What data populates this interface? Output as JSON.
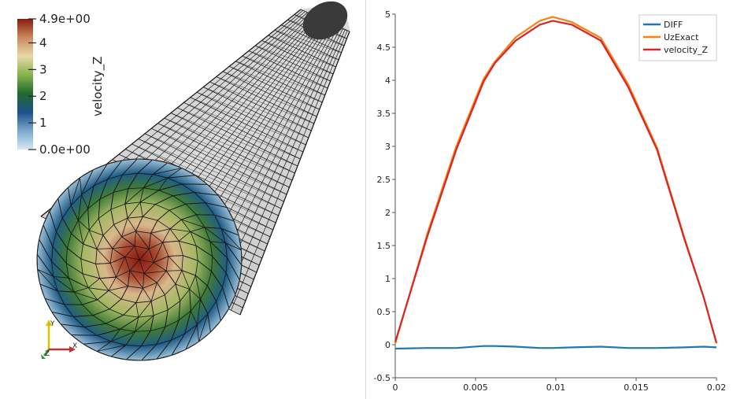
{
  "left_view": {
    "colorbar": {
      "title": "velocity_Z",
      "ticks": [
        {
          "value": 4.9,
          "label": "4.9e+00"
        },
        {
          "value": 4,
          "label": "4"
        },
        {
          "value": 3,
          "label": "3"
        },
        {
          "value": 2,
          "label": "2"
        },
        {
          "value": 1,
          "label": "1"
        },
        {
          "value": 0,
          "label": "0.0e+00"
        }
      ],
      "min": 0,
      "max": 4.9,
      "colors": [
        "#d6e8f4",
        "#7aa9cc",
        "#1e4f8c",
        "#1f6a2d",
        "#86b34a",
        "#e8d9a8",
        "#c98a5c",
        "#8a1a0e"
      ]
    },
    "axes_labels": {
      "x": "X",
      "y": "Y",
      "z": "Z"
    }
  },
  "chart_data": {
    "type": "line",
    "xlim": [
      0,
      0.02
    ],
    "ylim": [
      -0.5,
      5
    ],
    "x_ticks": [
      {
        "value": 0,
        "label": "0"
      },
      {
        "value": 0.005,
        "label": "0.005"
      },
      {
        "value": 0.01,
        "label": "0.01"
      },
      {
        "value": 0.015,
        "label": "0.015"
      },
      {
        "value": 0.02,
        "label": "0.02"
      }
    ],
    "y_ticks": [
      {
        "value": -0.5,
        "label": "-0.5"
      },
      {
        "value": 0,
        "label": "0"
      },
      {
        "value": 0.5,
        "label": "0.5"
      },
      {
        "value": 1,
        "label": "1"
      },
      {
        "value": 1.5,
        "label": "1.5"
      },
      {
        "value": 2,
        "label": "2"
      },
      {
        "value": 2.5,
        "label": "2.5"
      },
      {
        "value": 3,
        "label": "3"
      },
      {
        "value": 3.5,
        "label": "3.5"
      },
      {
        "value": 4,
        "label": "4"
      },
      {
        "value": 4.5,
        "label": "4.5"
      },
      {
        "value": 5,
        "label": "5"
      }
    ],
    "legend_position": "top-right",
    "grid": false,
    "series": [
      {
        "name": "DIFF",
        "color": "#1f77b4",
        "x": [
          0,
          0.002,
          0.0038,
          0.0055,
          0.0062,
          0.0075,
          0.009,
          0.0098,
          0.011,
          0.0128,
          0.0145,
          0.0163,
          0.018,
          0.0192,
          0.02
        ],
        "y": [
          -0.06,
          -0.05,
          -0.05,
          -0.02,
          -0.02,
          -0.03,
          -0.05,
          -0.05,
          -0.04,
          -0.03,
          -0.05,
          -0.05,
          -0.04,
          -0.03,
          -0.04
        ]
      },
      {
        "name": "UzExact",
        "color": "#ff7f0e",
        "x": [
          0,
          0.002,
          0.0038,
          0.0055,
          0.0062,
          0.0075,
          0.009,
          0.0098,
          0.011,
          0.0128,
          0.0145,
          0.0163,
          0.018,
          0.0192,
          0.02
        ],
        "y": [
          0.02,
          1.68,
          3.0,
          4.02,
          4.28,
          4.65,
          4.9,
          4.96,
          4.88,
          4.64,
          3.94,
          2.98,
          1.62,
          0.72,
          0.02
        ]
      },
      {
        "name": "velocity_Z",
        "color": "#d62728",
        "x": [
          0,
          0.002,
          0.0038,
          0.0055,
          0.0062,
          0.0075,
          0.009,
          0.0098,
          0.011,
          0.0128,
          0.0145,
          0.0163,
          0.018,
          0.0192,
          0.02
        ],
        "y": [
          0.04,
          1.64,
          2.95,
          3.98,
          4.26,
          4.6,
          4.84,
          4.9,
          4.84,
          4.6,
          3.9,
          2.95,
          1.6,
          0.72,
          0.03
        ]
      }
    ]
  }
}
